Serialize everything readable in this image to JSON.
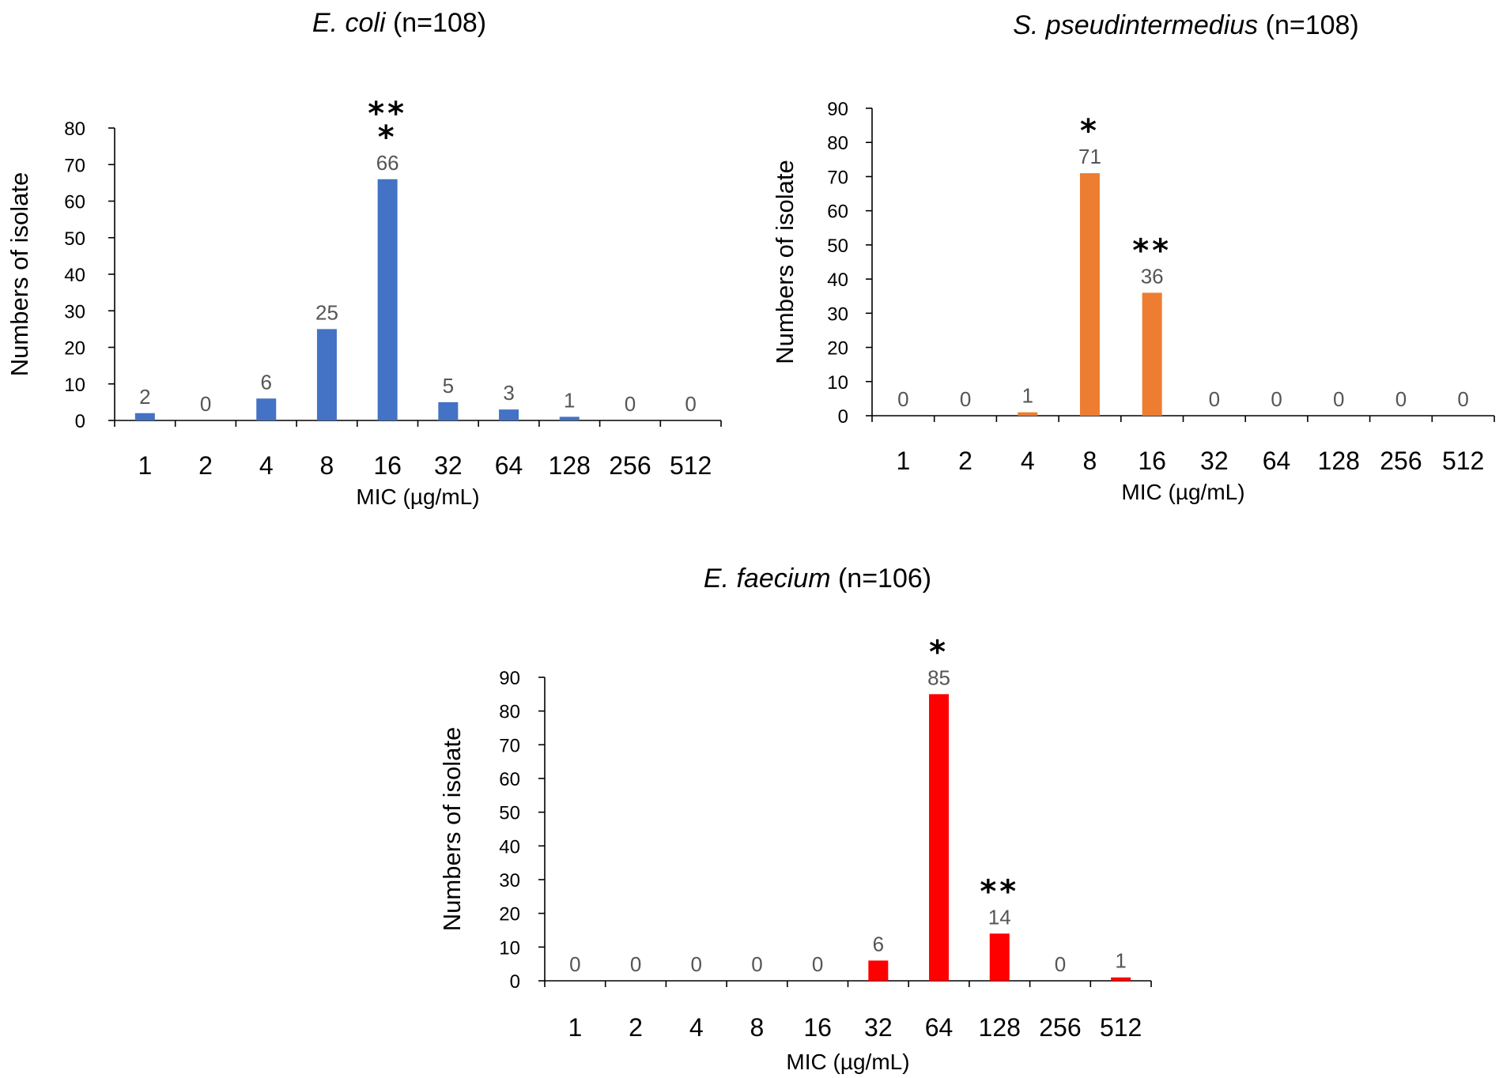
{
  "chart_data": [
    {
      "type": "bar",
      "title_species": "E. coli",
      "title_rest": " (n=108)",
      "xlabel": "MIC (µg/mL)",
      "ylabel": "Numbers of isolate",
      "categories": [
        "1",
        "2",
        "4",
        "8",
        "16",
        "32",
        "64",
        "128",
        "256",
        "512"
      ],
      "values": [
        2,
        0,
        6,
        25,
        66,
        5,
        3,
        1,
        0,
        0
      ],
      "data_labels": [
        "2",
        "0",
        "6",
        "25",
        "66",
        "5",
        "3",
        "1",
        "0",
        "0"
      ],
      "ylim": [
        0,
        80
      ],
      "yticks": [
        0,
        10,
        20,
        30,
        40,
        50,
        60,
        70,
        80
      ],
      "color": "#4472C4",
      "annotations": [
        {
          "category_index": 4,
          "lines": [
            "**",
            "*"
          ]
        }
      ],
      "grid": false,
      "legend": "none"
    },
    {
      "type": "bar",
      "title_species": "S. pseudintermedius",
      "title_rest": " (n=108)",
      "xlabel": "MIC (µg/mL)",
      "ylabel": "Numbers of isolate",
      "categories": [
        "1",
        "2",
        "4",
        "8",
        "16",
        "32",
        "64",
        "128",
        "256",
        "512"
      ],
      "values": [
        0,
        0,
        1,
        71,
        36,
        0,
        0,
        0,
        0,
        0
      ],
      "data_labels": [
        "0",
        "0",
        "1",
        "71",
        "36",
        "0",
        "0",
        "0",
        "0",
        "0"
      ],
      "ylim": [
        0,
        90
      ],
      "yticks": [
        0,
        10,
        20,
        30,
        40,
        50,
        60,
        70,
        80,
        90
      ],
      "color": "#ED7D31",
      "annotations": [
        {
          "category_index": 3,
          "lines": [
            "*"
          ]
        },
        {
          "category_index": 4,
          "lines": [
            "**"
          ]
        }
      ],
      "grid": false,
      "legend": "none"
    },
    {
      "type": "bar",
      "title_species": "E. faecium",
      "title_rest": " (n=106)",
      "xlabel": "MIC (µg/mL)",
      "ylabel": "Numbers of isolate",
      "categories": [
        "1",
        "2",
        "4",
        "8",
        "16",
        "32",
        "64",
        "128",
        "256",
        "512"
      ],
      "values": [
        0,
        0,
        0,
        0,
        0,
        6,
        85,
        14,
        0,
        1
      ],
      "data_labels": [
        "0",
        "0",
        "0",
        "0",
        "0",
        "6",
        "85",
        "14",
        "0",
        "1"
      ],
      "ylim": [
        0,
        90
      ],
      "yticks": [
        0,
        10,
        20,
        30,
        40,
        50,
        60,
        70,
        80,
        90
      ],
      "color": "#FF0000",
      "annotations": [
        {
          "category_index": 6,
          "lines": [
            "*"
          ]
        },
        {
          "category_index": 7,
          "lines": [
            "**"
          ]
        }
      ],
      "grid": false,
      "legend": "none"
    }
  ]
}
